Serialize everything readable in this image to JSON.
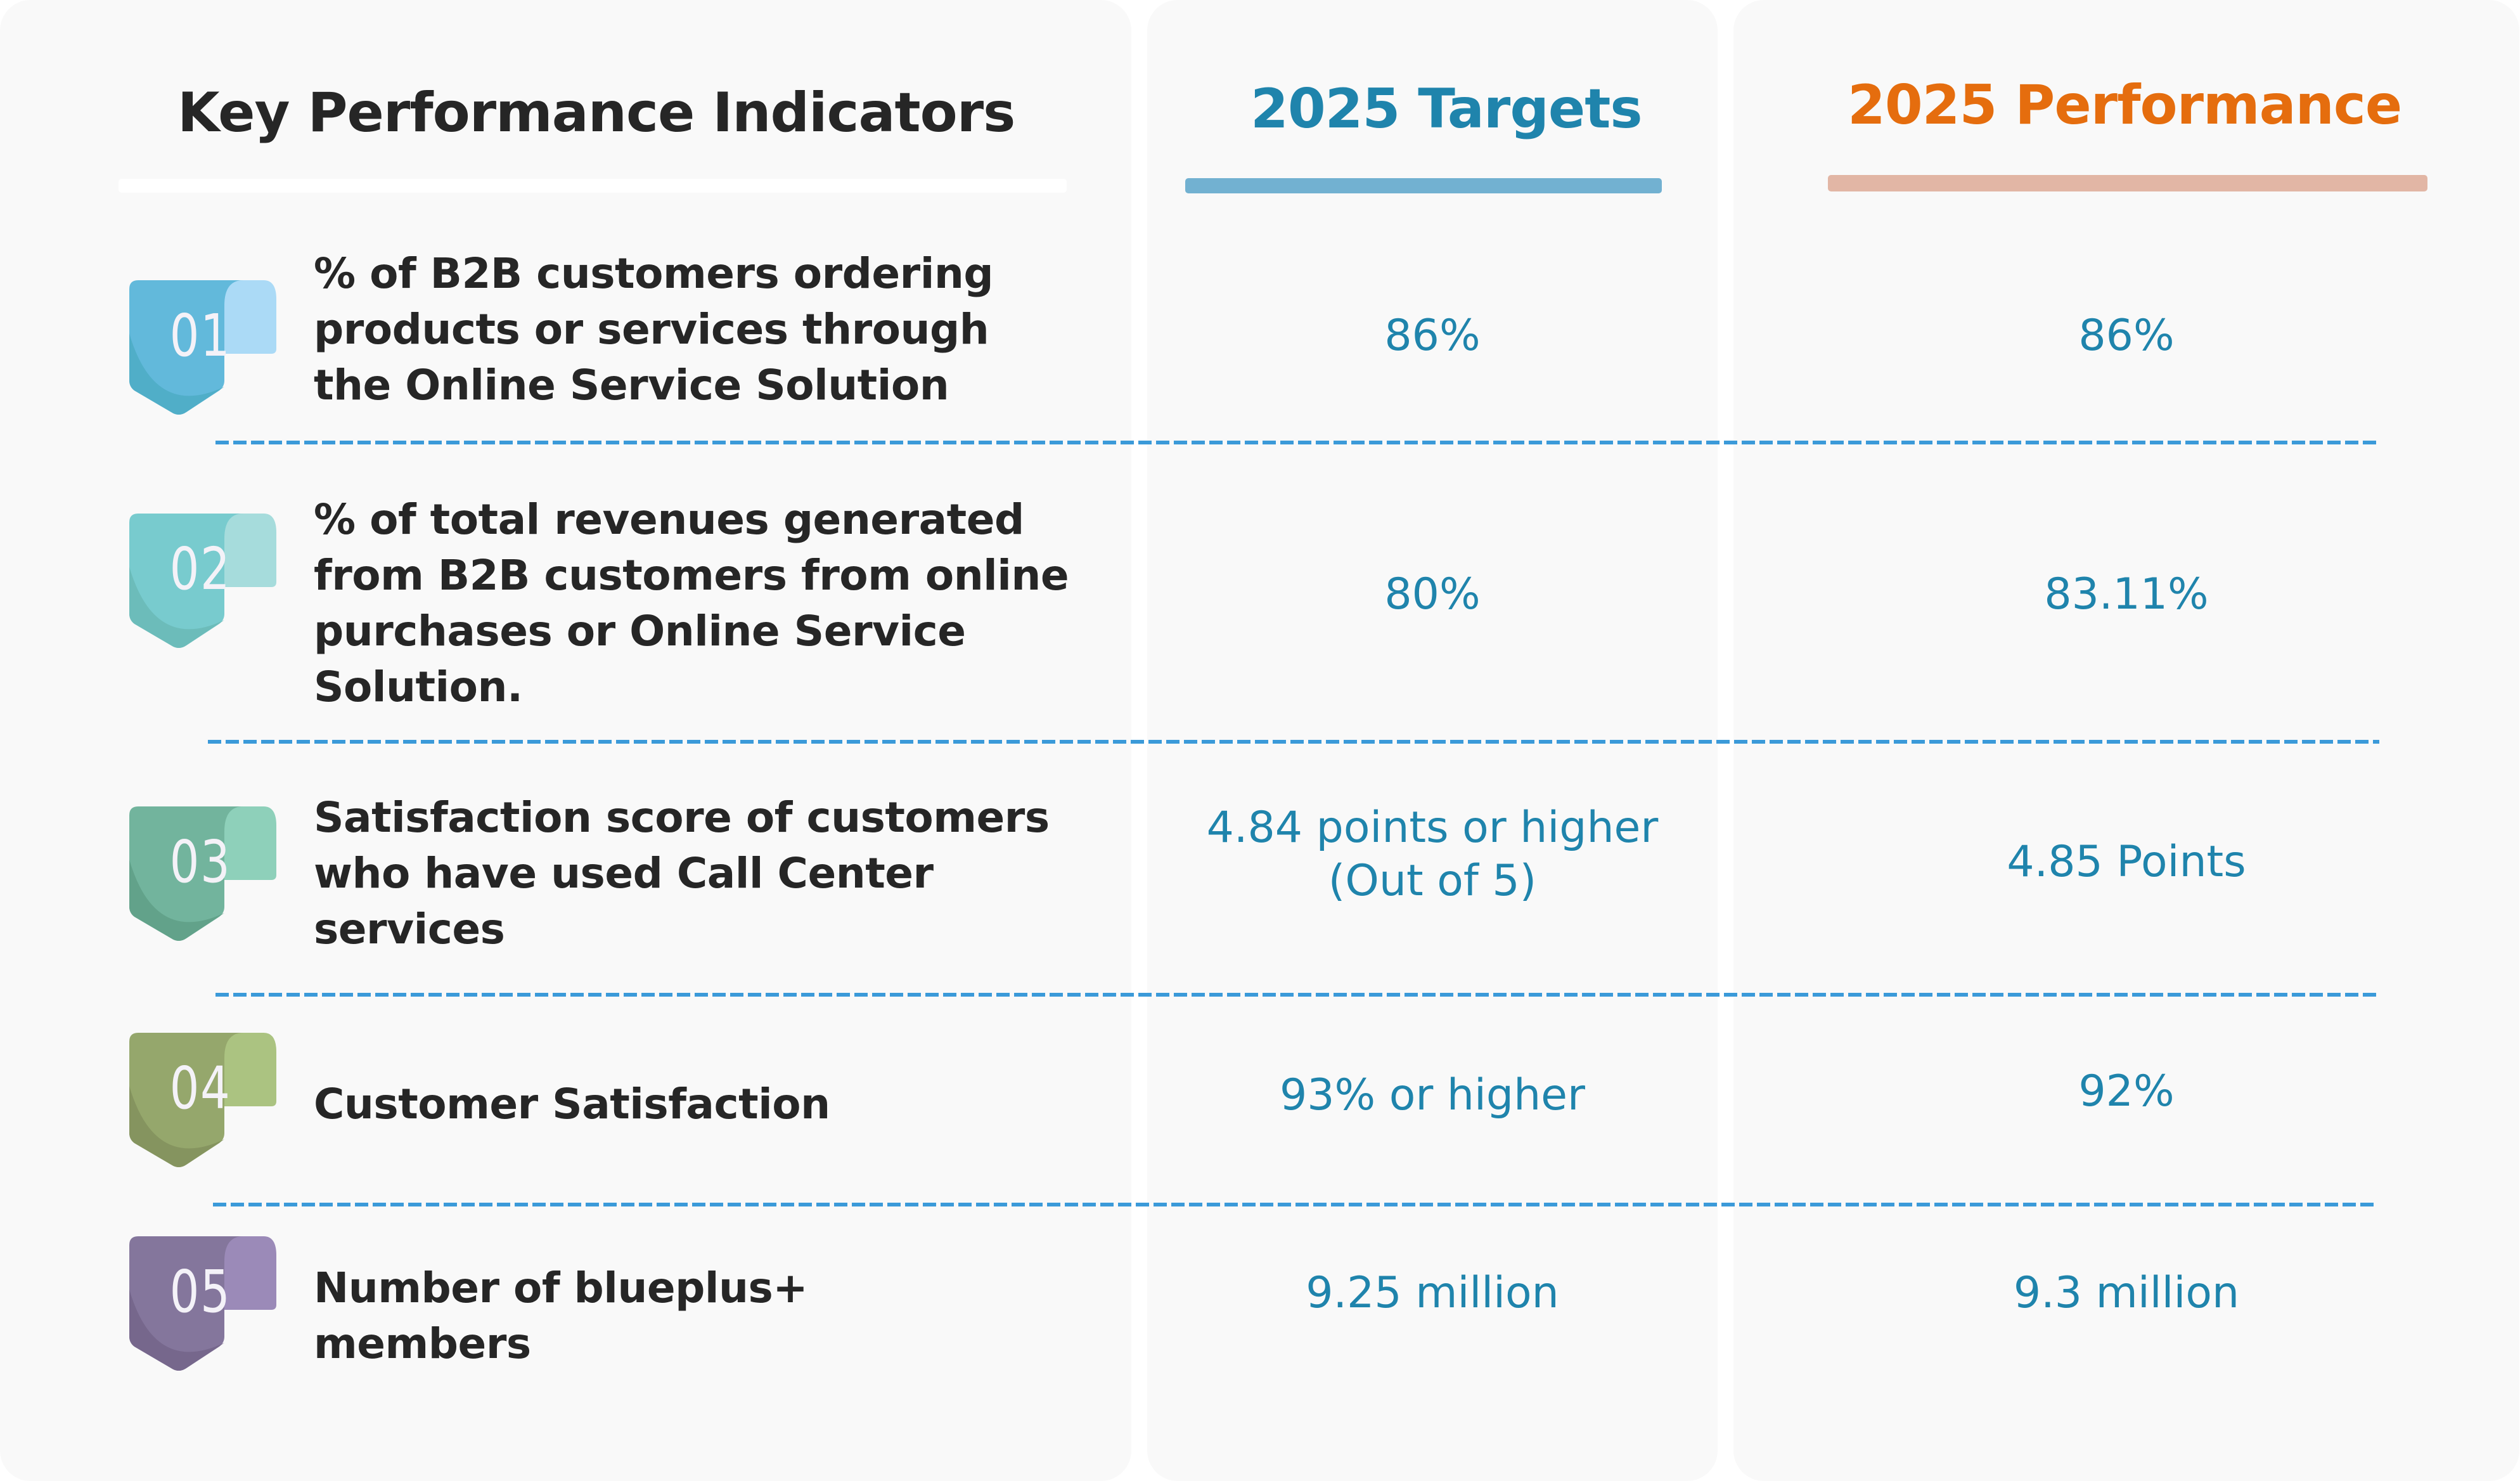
{
  "headers": {
    "kpi": "Key Performance Indicators",
    "targets": "2025 Targets",
    "performance": "2025 Performance"
  },
  "colors": {
    "kpi_header": "#262626",
    "targets_header": "#1f84ac",
    "performance_header": "#e56d0e",
    "targets_bar": "#72b1d1",
    "performance_bar": "#e2b6a5",
    "value_text": "#1f84ac",
    "divider": "#3b9ad9"
  },
  "rows": [
    {
      "number": "01",
      "badge_colors": {
        "main": "#62b9db",
        "shade": "#50aec8",
        "tab": "#abdaf6"
      },
      "lines": [
        "% of B2B customers ordering",
        "products or services through",
        "the Online Service Solution"
      ],
      "target": [
        "86%"
      ],
      "performance": "86%"
    },
    {
      "number": "02",
      "badge_colors": {
        "main": "#78cbce",
        "shade": "#6cbcba",
        "tab": "#a6dcdc"
      },
      "lines": [
        "% of total revenues generated",
        "from B2B customers from online",
        "purchases or Online Service",
        "Solution."
      ],
      "target": [
        "80%"
      ],
      "performance": "83.11%"
    },
    {
      "number": "03",
      "badge_colors": {
        "main": "#72b49d",
        "shade": "#62a28a",
        "tab": "#8ed0ba"
      },
      "lines": [
        "Satisfaction score of customers",
        "who have used Call Center",
        "services"
      ],
      "target": [
        "4.84 points or higher",
        "(Out of 5)"
      ],
      "performance": "4.85 Points"
    },
    {
      "number": "04",
      "badge_colors": {
        "main": "#95a76c",
        "shade": "#85945f",
        "tab": "#abc381"
      },
      "lines": [
        "Customer Satisfaction"
      ],
      "target": [
        "93% or higher"
      ],
      "performance": "92%"
    },
    {
      "number": "05",
      "badge_colors": {
        "main": "#84769c",
        "shade": "#76678c",
        "tab": "#9b8ab8"
      },
      "lines": [
        "Number of blueplus+",
        "members"
      ],
      "target": [
        "9.25 million"
      ],
      "performance": "9.3 million"
    }
  ]
}
